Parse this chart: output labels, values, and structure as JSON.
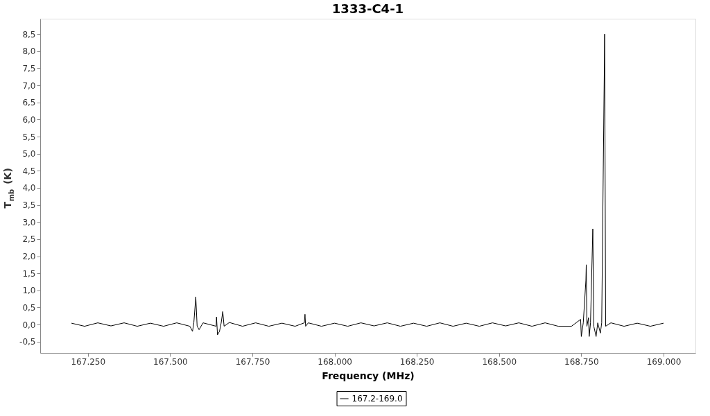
{
  "chart_data": {
    "type": "line",
    "title": "1333-C4-1",
    "xlabel": "Frequency (MHz)",
    "ylabel": "T$_{mb}$ (K)",
    "x": [
      167200,
      167240,
      167280,
      167320,
      167360,
      167400,
      167440,
      167480,
      167520,
      167560,
      167568,
      167572,
      167578,
      167582,
      167588,
      167600,
      167640,
      167641,
      167644,
      167650,
      167655,
      167660,
      167664,
      167680,
      167720,
      167760,
      167800,
      167840,
      167880,
      167908,
      167910,
      167912,
      167920,
      167960,
      168000,
      168040,
      168080,
      168120,
      168160,
      168200,
      168240,
      168280,
      168320,
      168360,
      168400,
      168440,
      168480,
      168520,
      168560,
      168600,
      168640,
      168680,
      168720,
      168748,
      168750,
      168756,
      168764,
      168765,
      168767,
      168772,
      168774,
      168778,
      168785,
      168788,
      168795,
      168800,
      168808,
      168812,
      168821,
      168824,
      168840,
      168880,
      168920,
      168960,
      169000
    ],
    "series": [
      {
        "name": "167.2-169.0",
        "color": "#000000",
        "values": [
          0.04,
          -0.05,
          0.05,
          -0.04,
          0.05,
          -0.05,
          0.04,
          -0.05,
          0.05,
          -0.05,
          -0.2,
          0.05,
          0.81,
          -0.04,
          -0.15,
          0.05,
          -0.05,
          0.22,
          -0.3,
          -0.2,
          0.04,
          0.38,
          -0.05,
          0.06,
          -0.05,
          0.05,
          -0.05,
          0.04,
          -0.05,
          0.05,
          0.3,
          -0.05,
          0.05,
          -0.05,
          0.04,
          -0.05,
          0.05,
          -0.04,
          0.05,
          -0.05,
          0.04,
          -0.05,
          0.05,
          -0.05,
          0.04,
          -0.05,
          0.05,
          -0.04,
          0.05,
          -0.05,
          0.05,
          -0.05,
          -0.05,
          0.15,
          -0.35,
          0.05,
          1.3,
          1.75,
          -0.05,
          0.2,
          -0.35,
          0.05,
          2.8,
          -0.05,
          -0.35,
          0.05,
          -0.25,
          0.05,
          8.5,
          -0.05,
          0.05,
          -0.05,
          0.04,
          -0.05,
          0.04
        ]
      }
    ],
    "xlim": [
      167105,
      169097
    ],
    "ylim": [
      -0.83,
      8.95
    ],
    "xticks": [
      {
        "value": 167250,
        "label": "167.250"
      },
      {
        "value": 167500,
        "label": "167.500"
      },
      {
        "value": 167750,
        "label": "167.750"
      },
      {
        "value": 168000,
        "label": "168.000"
      },
      {
        "value": 168250,
        "label": "168.250"
      },
      {
        "value": 168500,
        "label": "168.500"
      },
      {
        "value": 168750,
        "label": "168.750"
      },
      {
        "value": 169000,
        "label": "169.000"
      }
    ],
    "yticks": [
      {
        "value": -0.5,
        "label": "-0,5"
      },
      {
        "value": 0,
        "label": "0,0"
      },
      {
        "value": 0.5,
        "label": "0,5"
      },
      {
        "value": 1,
        "label": "1,0"
      },
      {
        "value": 1.5,
        "label": "1,5"
      },
      {
        "value": 2,
        "label": "2,0"
      },
      {
        "value": 2.5,
        "label": "2,5"
      },
      {
        "value": 3,
        "label": "3,0"
      },
      {
        "value": 3.5,
        "label": "3,5"
      },
      {
        "value": 4,
        "label": "4,0"
      },
      {
        "value": 4.5,
        "label": "4,5"
      },
      {
        "value": 5,
        "label": "5,0"
      },
      {
        "value": 5.5,
        "label": "5,5"
      },
      {
        "value": 6,
        "label": "6,0"
      },
      {
        "value": 6.5,
        "label": "6,5"
      },
      {
        "value": 7,
        "label": "7,0"
      },
      {
        "value": 7.5,
        "label": "7,5"
      },
      {
        "value": 8,
        "label": "8,0"
      },
      {
        "value": 8.5,
        "label": "8,5"
      }
    ],
    "grid": false,
    "legend": "bottom",
    "marker": "none",
    "line_style": "solid"
  }
}
